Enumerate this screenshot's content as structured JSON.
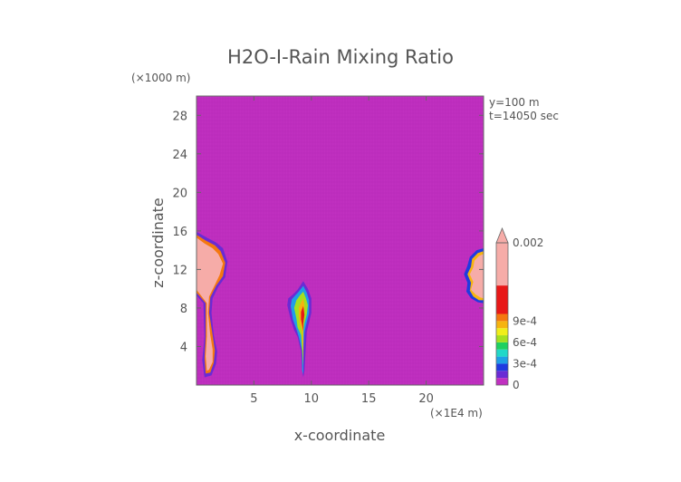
{
  "chart_data": {
    "type": "heatmap",
    "title": "H2O-I-Rain Mixing Ratio",
    "xlabel": "x-coordinate",
    "ylabel": "z-coordinate",
    "x_unit": "(×1E4 m)",
    "y_unit": "(×1000 m)",
    "annotations": [
      "y=100 m",
      "t=14050 sec"
    ],
    "xlim": [
      0,
      25
    ],
    "ylim": [
      0,
      30
    ],
    "x_ticks": [
      5,
      10,
      15,
      20
    ],
    "y_ticks": [
      4,
      8,
      12,
      16,
      20,
      24,
      28
    ],
    "x_tick_labels": [
      "5",
      "10",
      "15",
      "20"
    ],
    "y_tick_labels": [
      "4",
      "8",
      "12",
      "16",
      "20",
      "24",
      "28"
    ],
    "colorbar": {
      "min": 0,
      "max": 0.002,
      "extend": "max",
      "tick_values": [
        0,
        0.0003,
        0.0006,
        0.0009,
        0.002
      ],
      "tick_labels": [
        "0",
        "3e-4",
        "6e-4",
        "9e-4",
        "0.002"
      ],
      "levels": [
        {
          "from": 0,
          "to": 0.0001,
          "color": "#c030c0"
        },
        {
          "from": 0.0001,
          "to": 0.0002,
          "color": "#6a2bd4"
        },
        {
          "from": 0.0002,
          "to": 0.0003,
          "color": "#1f3be0"
        },
        {
          "from": 0.0003,
          "to": 0.0004,
          "color": "#1f9fe6"
        },
        {
          "from": 0.0004,
          "to": 0.0005,
          "color": "#22d8c8"
        },
        {
          "from": 0.0005,
          "to": 0.0006,
          "color": "#1fd060"
        },
        {
          "from": 0.0006,
          "to": 0.0007,
          "color": "#a4e020"
        },
        {
          "from": 0.0007,
          "to": 0.0008,
          "color": "#f0ee1a"
        },
        {
          "from": 0.0008,
          "to": 0.0009,
          "color": "#f6b410"
        },
        {
          "from": 0.0009,
          "to": 0.001,
          "color": "#f47810"
        },
        {
          "from": 0.001,
          "to": 0.0014,
          "color": "#e81818"
        },
        {
          "from": 0.0014,
          "to": 0.002,
          "color": "#f6aca8"
        }
      ],
      "over_color": "#f6aca8"
    },
    "background_color": "#c030c0",
    "rain_regions": [
      {
        "name": "left",
        "z_base": 1.0,
        "z_top": 15.7,
        "x_left": 0,
        "x_right": 2.7,
        "max_level": 11
      },
      {
        "name": "center",
        "z_base": 0.8,
        "z_top": 10.8,
        "x_left": 7.9,
        "x_right": 10.0,
        "max_level": 10
      },
      {
        "name": "right",
        "z_base": 8.5,
        "z_top": 14.2,
        "x_left": 23.3,
        "x_right": 25,
        "max_level": 11
      }
    ]
  }
}
